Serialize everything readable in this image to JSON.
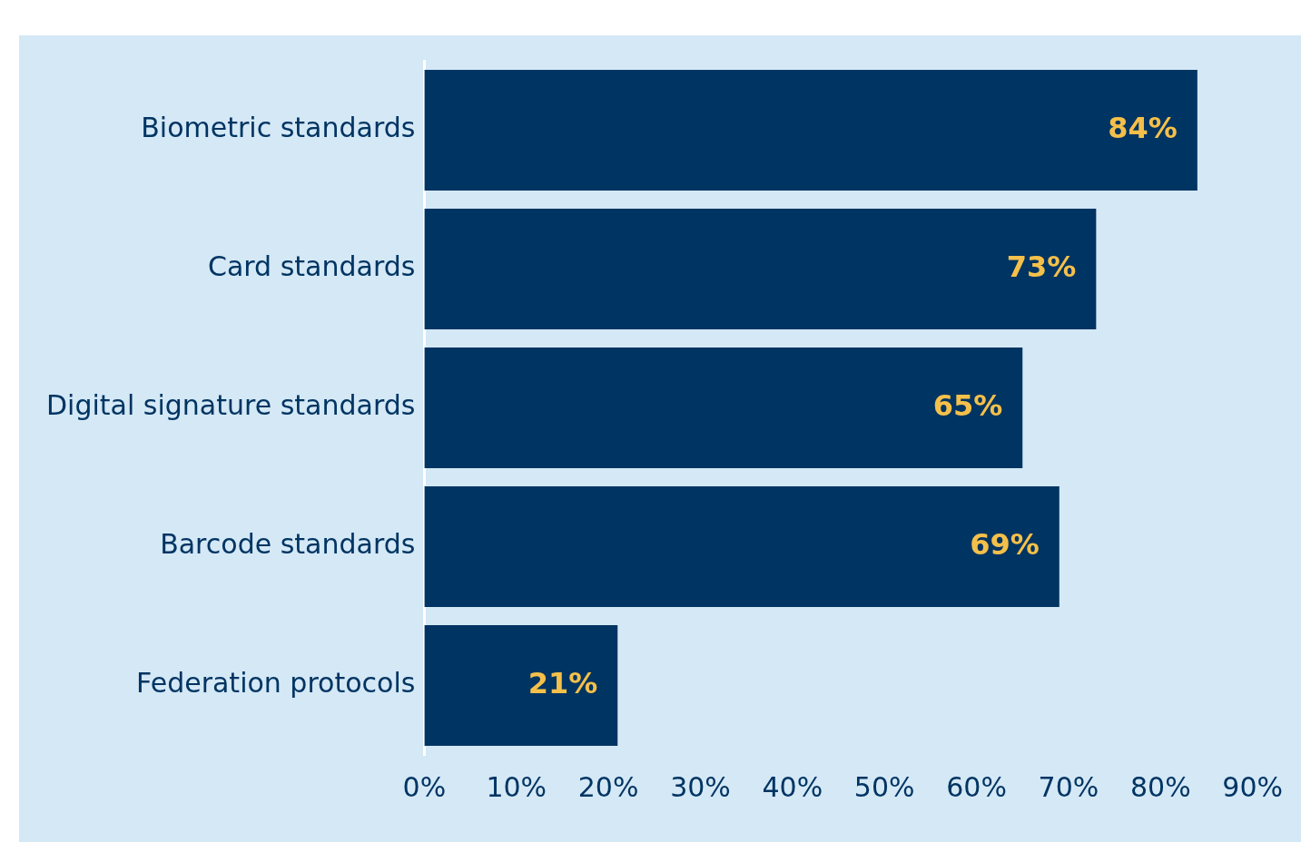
{
  "chart_data": {
    "type": "bar",
    "orientation": "horizontal",
    "categories": [
      "Biometric standards",
      "Card standards",
      "Digital signature standards",
      "Barcode standards",
      "Federation protocols"
    ],
    "values": [
      84,
      73,
      65,
      69,
      21
    ],
    "color": "#003462",
    "value_labels": [
      "84%",
      "73%",
      "65%",
      "69%",
      "21%"
    ],
    "xlim": [
      0,
      90
    ],
    "xticks": [
      {
        "value": 0,
        "label": "0%"
      },
      {
        "value": 10,
        "label": "10%"
      },
      {
        "value": 20,
        "label": "20%"
      },
      {
        "value": 30,
        "label": "30%"
      },
      {
        "value": 40,
        "label": "40%"
      },
      {
        "value": 50,
        "label": "50%"
      },
      {
        "value": 60,
        "label": "60%"
      },
      {
        "value": 70,
        "label": "70%"
      },
      {
        "value": 80,
        "label": "80%"
      },
      {
        "value": 90,
        "label": "90%"
      }
    ],
    "grid": false,
    "legend": false
  }
}
